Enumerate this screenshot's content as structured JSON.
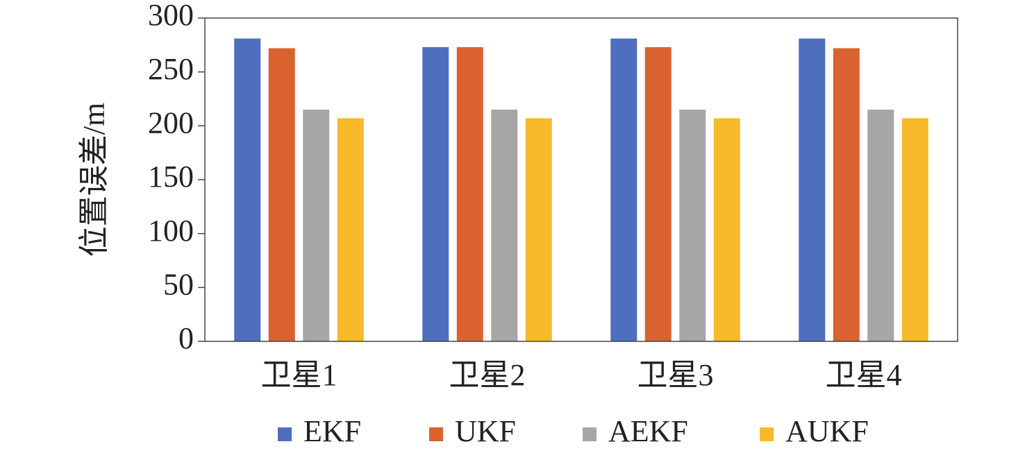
{
  "chart_data": {
    "type": "bar",
    "title": "",
    "xlabel": "",
    "ylabel": "位置误差/m",
    "categories": [
      "卫星1",
      "卫星2",
      "卫星3",
      "卫星4"
    ],
    "ylim": [
      0,
      300
    ],
    "yticks": [
      0,
      50,
      100,
      150,
      200,
      250,
      300
    ],
    "grid": false,
    "legend_position": "bottom",
    "series": [
      {
        "name": "EKF",
        "color": "#4E6FBE",
        "values": [
          281,
          273,
          281,
          281
        ]
      },
      {
        "name": "UKF",
        "color": "#DA6230",
        "values": [
          272,
          273,
          273,
          272
        ]
      },
      {
        "name": "AEKF",
        "color": "#A6A6A6",
        "values": [
          215,
          215,
          215,
          215
        ]
      },
      {
        "name": "AUKF",
        "color": "#F8B92A",
        "values": [
          207,
          207,
          207,
          207
        ]
      }
    ]
  }
}
